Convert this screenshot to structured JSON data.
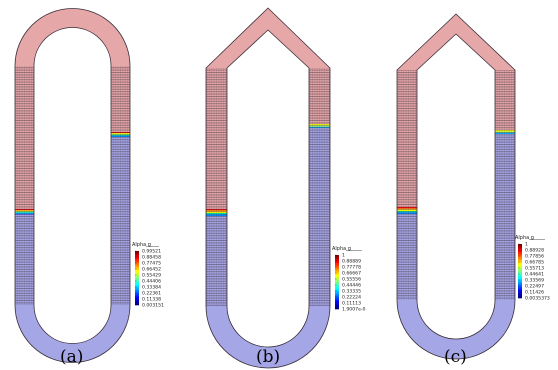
{
  "colors": {
    "liquid": "#e6a7a9",
    "gas": "#a5a6e6",
    "line": "#3a2d38",
    "legend_scale": [
      "#00007f",
      "#0000ff",
      "#007fff",
      "#00ffff",
      "#7fff7f",
      "#ffff00",
      "#ff7f00",
      "#ff0000",
      "#7f0000"
    ]
  },
  "panels": [
    {
      "label": "(a)",
      "shape": "U-loop with rounded top and bottom",
      "legend": {
        "title": "Alpha g",
        "ticks": [
          "0.99521",
          "0.88458",
          "0.77475",
          "0.66452",
          "0.55429",
          "0.44406",
          "0.33384",
          "0.22361",
          "0.11338",
          "0.003151"
        ]
      },
      "interface_left_fraction_from_top": 0.58,
      "interface_right_fraction_from_top": 0.38
    },
    {
      "label": "(b)",
      "shape": "pentagon-top loop with rounded bottom",
      "legend": {
        "title": "Alpha g",
        "ticks": [
          "1",
          "0.88889",
          "0.77778",
          "0.66667",
          "0.55556",
          "0.44446",
          "0.33335",
          "0.22224",
          "0.11113",
          "1.9007e-0"
        ]
      },
      "interface_left_fraction_from_top": 0.53,
      "interface_right_fraction_from_top": 0.27
    },
    {
      "label": "(c)",
      "shape": "pentagon-top loop with rounded bottom",
      "legend": {
        "title": "Alpha g",
        "ticks": [
          "1",
          "0.88928",
          "0.77856",
          "0.66785",
          "0.55713",
          "0.44641",
          "0.33569",
          "0.22497",
          "0.11426",
          "0.0035373"
        ]
      },
      "interface_left_fraction_from_top": 0.57,
      "interface_right_fraction_from_top": 0.29
    }
  ]
}
